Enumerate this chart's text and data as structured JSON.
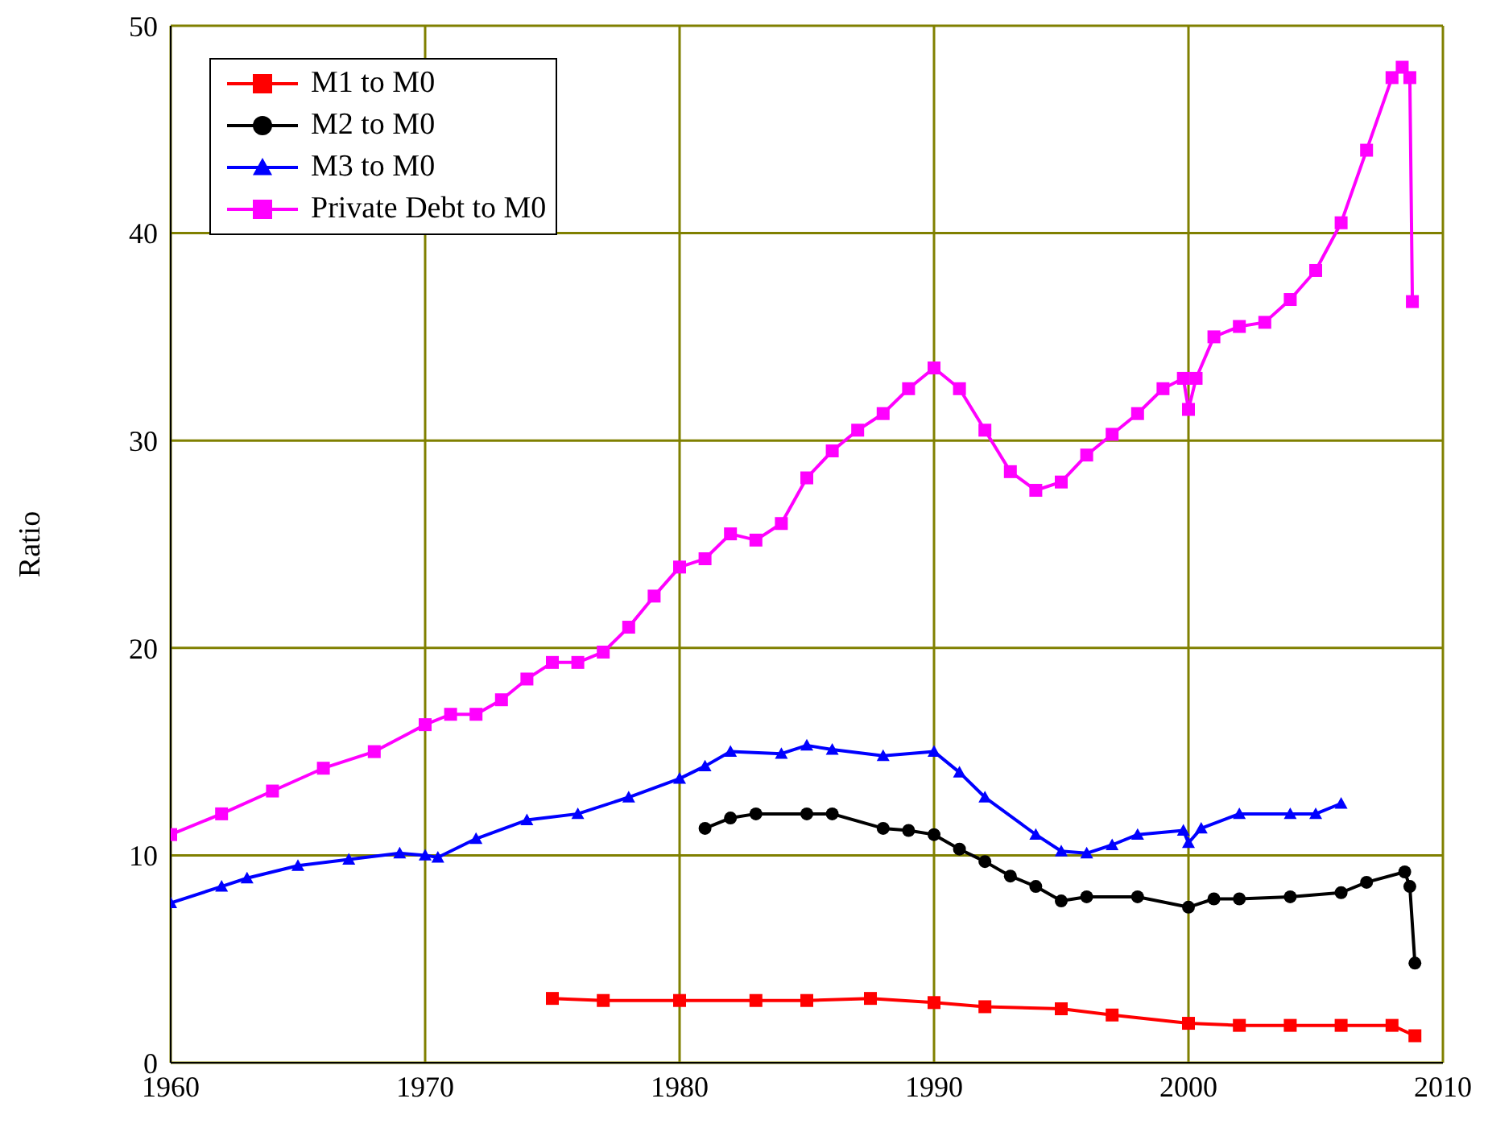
{
  "chart_data": {
    "type": "line",
    "ylabel": "Ratio",
    "xlim": [
      1960,
      2010
    ],
    "xticks": [
      1960,
      1970,
      1980,
      1990,
      2000,
      2010
    ],
    "ylim": [
      0,
      50
    ],
    "yticks": [
      0,
      10,
      20,
      30,
      40,
      50
    ],
    "grid": true,
    "legend": "top left",
    "line_style": "solid",
    "series": [
      {
        "name": "M1 to M0",
        "color": "#ff0000",
        "marker": "square",
        "x": [
          1975,
          1977,
          1980,
          1983,
          1985,
          1987.5,
          1990,
          1992,
          1995,
          1997,
          2000,
          2002,
          2004,
          2006,
          2008,
          2008.9
        ],
        "values": [
          3.1,
          3.0,
          3.0,
          3.0,
          3.0,
          3.1,
          2.9,
          2.7,
          2.6,
          2.3,
          1.9,
          1.8,
          1.8,
          1.8,
          1.8,
          1.3
        ]
      },
      {
        "name": "M2 to M0",
        "color": "#000000",
        "marker": "circle",
        "x": [
          1981,
          1982,
          1983,
          1985,
          1986,
          1988,
          1989,
          1990,
          1991,
          1992,
          1993,
          1994,
          1995,
          1996,
          1998,
          2000,
          2001,
          2002,
          2004,
          2006,
          2007,
          2008.5,
          2008.7,
          2008.9
        ],
        "values": [
          11.3,
          11.8,
          12.0,
          12.0,
          12.0,
          11.3,
          11.2,
          11.0,
          10.3,
          9.7,
          9.0,
          8.5,
          7.8,
          8.0,
          8.0,
          7.5,
          7.9,
          7.9,
          8.0,
          8.2,
          8.7,
          9.2,
          8.5,
          4.8
        ]
      },
      {
        "name": "M3 to M0",
        "color": "#0000ff",
        "marker": "triangle",
        "x": [
          1960,
          1962,
          1963,
          1965,
          1967,
          1969,
          1970,
          1970.5,
          1972,
          1974,
          1976,
          1978,
          1980,
          1981,
          1982,
          1984,
          1985,
          1986,
          1988,
          1990,
          1991,
          1992,
          1994,
          1995,
          1996,
          1997,
          1998,
          1999.8,
          2000,
          2000.5,
          2002,
          2004,
          2005,
          2006
        ],
        "values": [
          7.7,
          8.5,
          8.9,
          9.5,
          9.8,
          10.1,
          10.0,
          9.9,
          10.8,
          11.7,
          12.0,
          12.8,
          13.7,
          14.3,
          15.0,
          14.9,
          15.3,
          15.1,
          14.8,
          15.0,
          14.0,
          12.8,
          11.0,
          10.2,
          10.1,
          10.5,
          11.0,
          11.2,
          10.6,
          11.3,
          12.0,
          12.0,
          12.0,
          12.5
        ]
      },
      {
        "name": "Private Debt to M0",
        "color": "#ff00ff",
        "marker": "square",
        "x": [
          1960,
          1962,
          1964,
          1966,
          1968,
          1970,
          1971,
          1972,
          1973,
          1974,
          1975,
          1976,
          1977,
          1978,
          1979,
          1980,
          1981,
          1982,
          1983,
          1984,
          1985,
          1986,
          1987,
          1988,
          1989,
          1990,
          1991,
          1992,
          1993,
          1994,
          1995,
          1996,
          1997,
          1998,
          1999,
          1999.8,
          2000,
          2000.3,
          2001,
          2002,
          2003,
          2004,
          2005,
          2006,
          2007,
          2008,
          2008.4,
          2008.7,
          2008.8
        ],
        "values": [
          11.0,
          12.0,
          13.1,
          14.2,
          15.0,
          16.3,
          16.8,
          16.8,
          17.5,
          18.5,
          19.3,
          19.3,
          19.8,
          21.0,
          22.5,
          23.9,
          24.3,
          25.5,
          25.2,
          26.0,
          28.2,
          29.5,
          30.5,
          31.3,
          32.5,
          33.5,
          32.5,
          30.5,
          28.5,
          27.6,
          28.0,
          29.3,
          30.3,
          31.3,
          32.5,
          33.0,
          31.5,
          33.0,
          35.0,
          35.5,
          35.7,
          36.8,
          38.2,
          40.5,
          44.0,
          47.5,
          48.0,
          47.5,
          36.7
        ]
      }
    ]
  }
}
